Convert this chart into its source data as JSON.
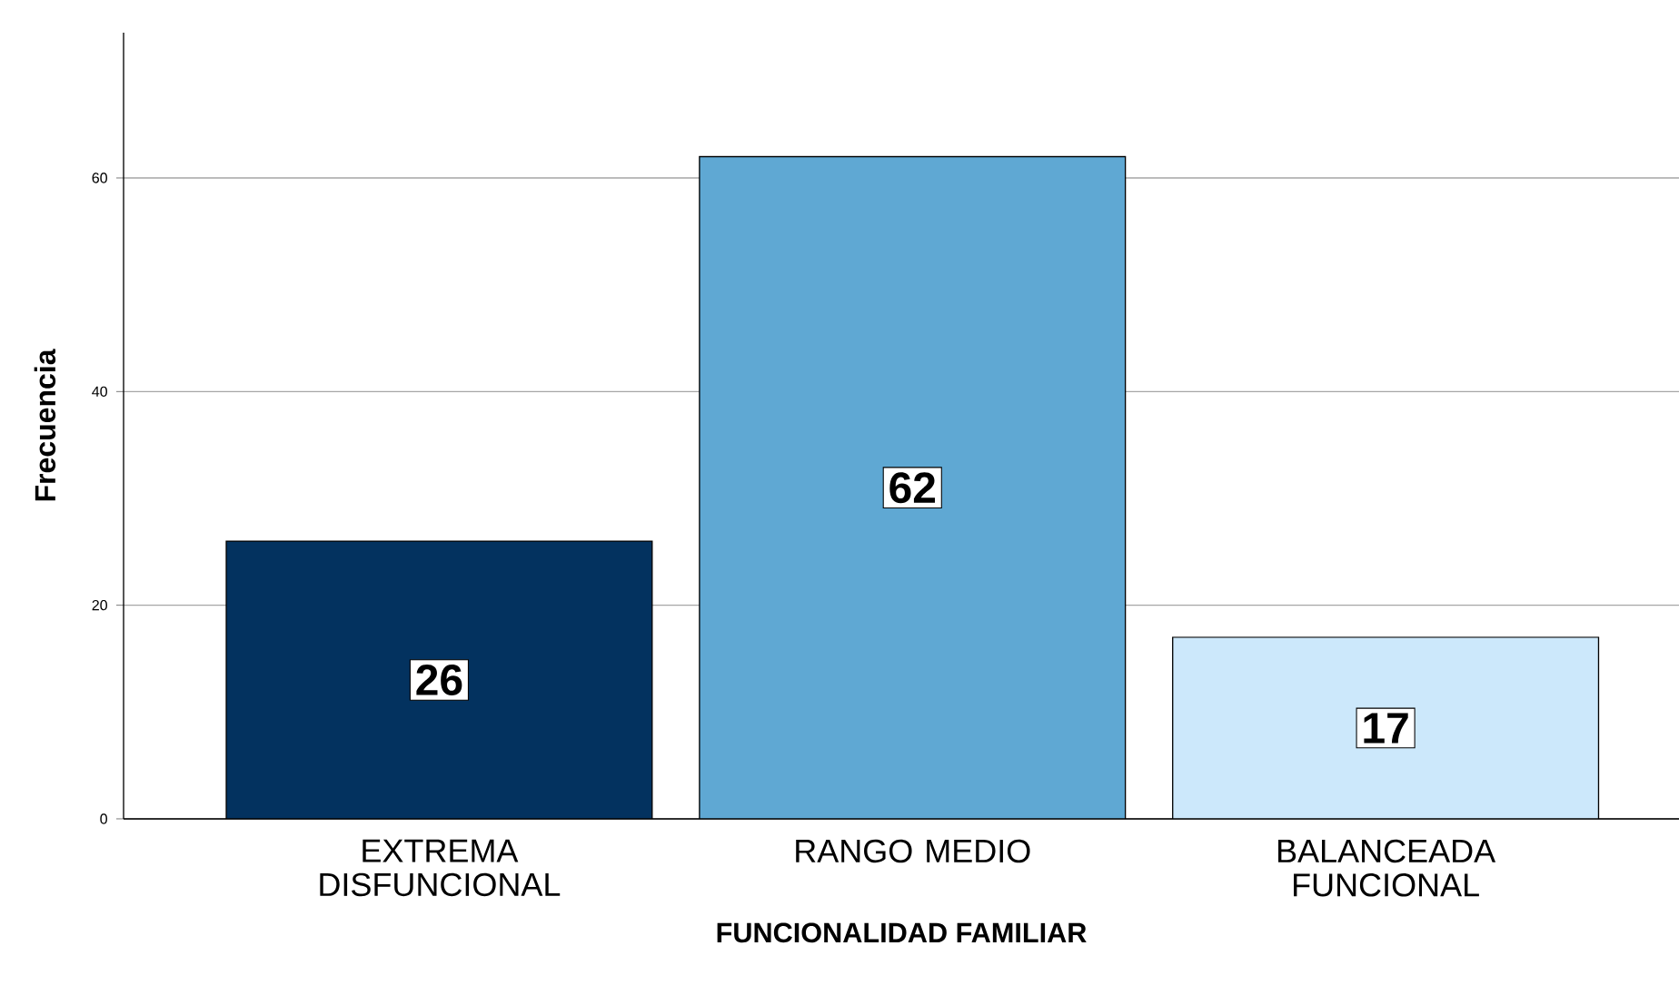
{
  "chart_data": {
    "type": "bar",
    "xlabel": "FUNCIONALIDAD FAMILIAR",
    "ylabel": "Frecuencia",
    "categories": [
      "EXTREMA DISFUNCIONAL",
      "RANGO MEDIO",
      "BALANCEADA FUNCIONAL"
    ],
    "values": [
      26,
      62,
      17
    ],
    "colors": [
      "#03325f",
      "#5fa8d3",
      "#cce8fb"
    ],
    "ylim": [
      0,
      73.6
    ],
    "yticks": [
      0,
      20,
      40,
      60
    ],
    "grid": "y",
    "data_labels": true
  }
}
